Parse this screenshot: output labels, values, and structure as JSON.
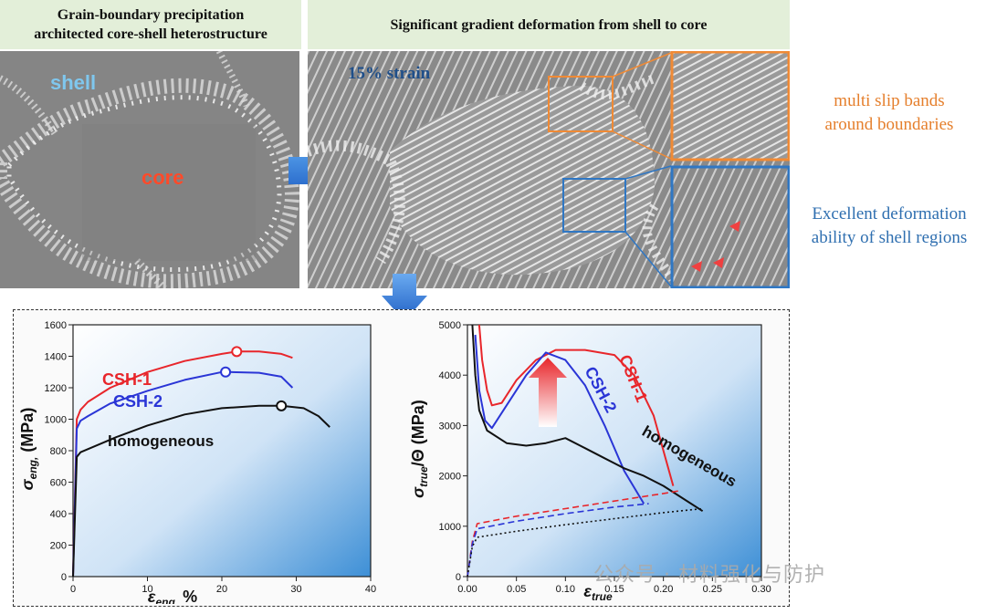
{
  "top_left": {
    "caption_line1": "Grain-boundary precipitation",
    "caption_line2": "architected core-shell heterostructure",
    "shell_label": "shell",
    "core_label": "core"
  },
  "top_right": {
    "caption": "Significant gradient deformation from shell to core",
    "strain_label": "15% strain"
  },
  "notes": {
    "orange_line1": "multi slip bands",
    "orange_line2": "around boundaries",
    "blue_line1": "Excellent deformation",
    "blue_line2": "ability of shell regions"
  },
  "colors": {
    "csh1": "#e8262b",
    "csh2": "#2a35d6",
    "homogeneous": "#111111",
    "orange_box": "#f08a35",
    "blue_box": "#2f77c4"
  },
  "watermark": "公众号 · 材料强化与防护",
  "chart_data": [
    {
      "type": "line",
      "xlabel_main": "ε",
      "xlabel_sub": "eng,",
      "xlabel_unit": " %",
      "ylabel_main": "σ",
      "ylabel_sub": "eng,",
      "ylabel_unit": " (MPa)",
      "xlim": [
        0,
        40
      ],
      "ylim": [
        0,
        1600
      ],
      "xticks": [
        0,
        10,
        20,
        30,
        40
      ],
      "yticks": [
        0,
        200,
        400,
        600,
        800,
        1000,
        1200,
        1400,
        1600
      ],
      "series": [
        {
          "name": "CSH-1",
          "color": "#e8262b",
          "x": [
            0,
            0.5,
            1.0,
            2,
            5,
            10,
            15,
            20,
            22,
            25,
            28,
            29.5
          ],
          "y": [
            0,
            1000,
            1060,
            1110,
            1200,
            1300,
            1370,
            1415,
            1430,
            1430,
            1415,
            1390
          ],
          "marker": [
            22,
            1430
          ]
        },
        {
          "name": "CSH-2",
          "color": "#2a35d6",
          "x": [
            0,
            0.5,
            1.0,
            2,
            5,
            10,
            15,
            20,
            21,
            25,
            28,
            29.5
          ],
          "y": [
            0,
            940,
            990,
            1020,
            1100,
            1180,
            1250,
            1300,
            1300,
            1295,
            1270,
            1200
          ],
          "marker": [
            20.5,
            1300
          ]
        },
        {
          "name": "homogeneous",
          "color": "#111111",
          "x": [
            0,
            0.5,
            1.0,
            3,
            6,
            10,
            15,
            20,
            25,
            28,
            31,
            33,
            34.5
          ],
          "y": [
            0,
            760,
            790,
            830,
            890,
            960,
            1030,
            1070,
            1085,
            1085,
            1070,
            1020,
            950
          ],
          "marker": [
            28,
            1085
          ]
        }
      ]
    },
    {
      "type": "line",
      "xlabel_main": "ε",
      "xlabel_sub": "true",
      "ylabel_main": "σ",
      "ylabel_sub": "true",
      "ylabel_unit": "/Θ (MPa)",
      "xlim": [
        0,
        0.3
      ],
      "ylim": [
        0,
        5000
      ],
      "xticks": [
        0.0,
        0.05,
        0.1,
        0.15,
        0.2,
        0.25,
        0.3
      ],
      "xtick_labels": [
        "0.00",
        "0.05",
        "0.10",
        "0.15",
        "0.20",
        "0.25",
        "0.30"
      ],
      "yticks": [
        0,
        1000,
        2000,
        3000,
        4000,
        5000
      ],
      "series": [
        {
          "name": "CSH-1",
          "color": "#e8262b",
          "x": [
            0.012,
            0.015,
            0.02,
            0.025,
            0.035,
            0.05,
            0.07,
            0.09,
            0.12,
            0.15,
            0.17,
            0.19,
            0.21
          ],
          "y": [
            5000,
            4300,
            3700,
            3400,
            3450,
            3900,
            4300,
            4500,
            4500,
            4400,
            4000,
            3200,
            1800
          ],
          "style": "solid"
        },
        {
          "name": "CSH-2",
          "color": "#2a35d6",
          "x": [
            0.008,
            0.012,
            0.018,
            0.025,
            0.04,
            0.06,
            0.08,
            0.1,
            0.12,
            0.14,
            0.16,
            0.18
          ],
          "y": [
            4800,
            3700,
            3100,
            2950,
            3400,
            4000,
            4450,
            4300,
            3800,
            3000,
            2100,
            1450
          ],
          "style": "solid"
        },
        {
          "name": "homogeneous",
          "color": "#111111",
          "x": [
            0.005,
            0.008,
            0.012,
            0.02,
            0.04,
            0.06,
            0.08,
            0.1,
            0.12,
            0.14,
            0.16,
            0.18,
            0.2,
            0.22,
            0.24
          ],
          "y": [
            5000,
            4000,
            3300,
            2900,
            2650,
            2600,
            2650,
            2750,
            2550,
            2350,
            2150,
            2000,
            1800,
            1550,
            1300
          ],
          "style": "solid"
        },
        {
          "name": "",
          "color": "#e8262b",
          "x": [
            0.0,
            0.005,
            0.01,
            0.05,
            0.1,
            0.15,
            0.2,
            0.215
          ],
          "y": [
            0,
            700,
            1050,
            1200,
            1350,
            1500,
            1650,
            1700
          ],
          "style": "dashed"
        },
        {
          "name": "",
          "color": "#2a35d6",
          "x": [
            0.0,
            0.005,
            0.01,
            0.05,
            0.1,
            0.15,
            0.185
          ],
          "y": [
            0,
            650,
            950,
            1100,
            1250,
            1380,
            1450
          ],
          "style": "dashed"
        },
        {
          "name": "",
          "color": "#111111",
          "x": [
            0.0,
            0.005,
            0.01,
            0.05,
            0.1,
            0.15,
            0.2,
            0.24
          ],
          "y": [
            0,
            600,
            780,
            900,
            1030,
            1150,
            1270,
            1350
          ],
          "style": "dotted"
        }
      ]
    }
  ]
}
